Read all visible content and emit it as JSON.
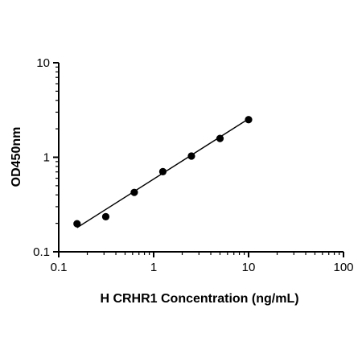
{
  "chart_data": {
    "type": "scatter",
    "title": "",
    "xlabel": "H CRHR1 Concentration (ng/mL)",
    "ylabel": "OD450nm",
    "xscale": "log",
    "yscale": "log",
    "xlim": [
      0.1,
      100
    ],
    "ylim": [
      0.1,
      10
    ],
    "x_ticks": [
      0.1,
      1,
      10,
      100
    ],
    "x_tick_labels": [
      "0.1",
      "1",
      "10",
      "100"
    ],
    "y_ticks": [
      0.1,
      1,
      10
    ],
    "y_tick_labels": [
      "0.1",
      "1",
      "10"
    ],
    "grid": false,
    "legend": "none",
    "series": [
      {
        "points": [
          {
            "x": 0.156,
            "y": 0.198
          },
          {
            "x": 0.313,
            "y": 0.235
          },
          {
            "x": 0.625,
            "y": 0.425
          },
          {
            "x": 1.25,
            "y": 0.705
          },
          {
            "x": 2.5,
            "y": 1.03
          },
          {
            "x": 5,
            "y": 1.58
          },
          {
            "x": 10,
            "y": 2.5
          }
        ]
      }
    ],
    "fit_line": {
      "x": [
        0.156,
        10
      ],
      "y": [
        0.18,
        2.55
      ]
    },
    "colors": {
      "marker": "#000000",
      "line": "#000000",
      "axis": "#000000"
    }
  }
}
